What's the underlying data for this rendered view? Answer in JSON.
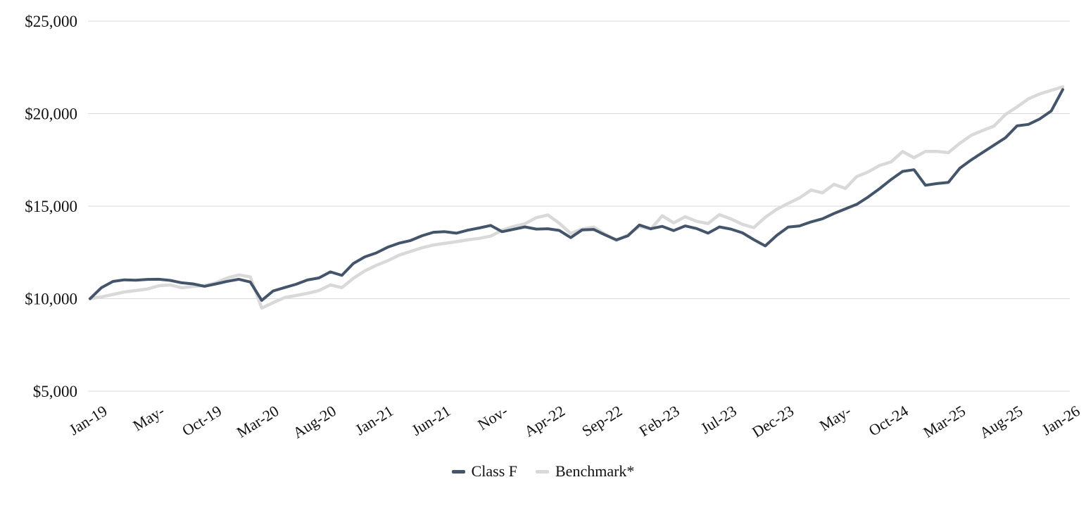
{
  "chart_data": {
    "type": "line",
    "title": "",
    "xlabel": "",
    "ylabel": "",
    "grid": "horizontal",
    "legend_position": "bottom-center",
    "ylim": [
      5000,
      25000
    ],
    "y_ticks": [
      {
        "label": "$25,000",
        "value": 25000
      },
      {
        "label": "$20,000",
        "value": 20000
      },
      {
        "label": "$15,000",
        "value": 15000
      },
      {
        "label": "$10,000",
        "value": 10000
      },
      {
        "label": "$5,000",
        "value": 5000
      }
    ],
    "x_tick_labels": [
      "Jan-19",
      "May-",
      "Oct-19",
      "Mar-20",
      "Aug-20",
      "Jan-21",
      "Jun-21",
      "Nov-",
      "Apr-22",
      "Sep-22",
      "Feb-23",
      "Jul-23",
      "Dec-23",
      "May-",
      "Oct-24",
      "Mar-25",
      "Aug-25",
      "Jan-26"
    ],
    "series": [
      {
        "name": "Class F",
        "color": "#44546A",
        "stroke_width": 4,
        "values": [
          10000,
          10600,
          10930,
          11020,
          11000,
          11040,
          11050,
          10990,
          10860,
          10800,
          10670,
          10800,
          10940,
          11050,
          10900,
          9910,
          10420,
          10600,
          10780,
          11010,
          11120,
          11450,
          11260,
          11900,
          12260,
          12470,
          12780,
          13000,
          13140,
          13400,
          13590,
          13620,
          13540,
          13700,
          13820,
          13960,
          13620,
          13750,
          13880,
          13760,
          13780,
          13690,
          13300,
          13720,
          13740,
          13450,
          13180,
          13400,
          13980,
          13780,
          13910,
          13680,
          13930,
          13790,
          13540,
          13880,
          13760,
          13560,
          13190,
          12850,
          13420,
          13870,
          13930,
          14150,
          14320,
          14600,
          14850,
          15100,
          15500,
          15950,
          16440,
          16880,
          16970,
          16130,
          16220,
          16280,
          17050,
          17500,
          17900,
          18300,
          18700,
          19340,
          19420,
          19720,
          20150,
          21300
        ]
      },
      {
        "name": "Benchmark*",
        "color": "#D9D9D9",
        "stroke_width": 4.5,
        "values": [
          10000,
          10100,
          10230,
          10360,
          10440,
          10520,
          10700,
          10740,
          10590,
          10660,
          10710,
          10860,
          11120,
          11280,
          11180,
          9490,
          9790,
          10060,
          10170,
          10290,
          10440,
          10740,
          10600,
          11100,
          11500,
          11800,
          12050,
          12350,
          12550,
          12750,
          12900,
          12990,
          13080,
          13180,
          13260,
          13380,
          13700,
          13900,
          14050,
          14380,
          14520,
          14080,
          13520,
          13760,
          13870,
          13490,
          13140,
          13450,
          13900,
          13760,
          14480,
          14100,
          14430,
          14180,
          14060,
          14540,
          14310,
          14020,
          13840,
          14400,
          14830,
          15150,
          15450,
          15870,
          15720,
          16180,
          15960,
          16600,
          16850,
          17200,
          17390,
          17950,
          17620,
          17960,
          17960,
          17890,
          18400,
          18830,
          19090,
          19330,
          19960,
          20360,
          20800,
          21070,
          21260,
          21450
        ]
      }
    ]
  },
  "legend": {
    "items": [
      {
        "label": "Class F",
        "color": "#44546A"
      },
      {
        "label": "Benchmark*",
        "color": "#D9D9D9"
      }
    ]
  }
}
